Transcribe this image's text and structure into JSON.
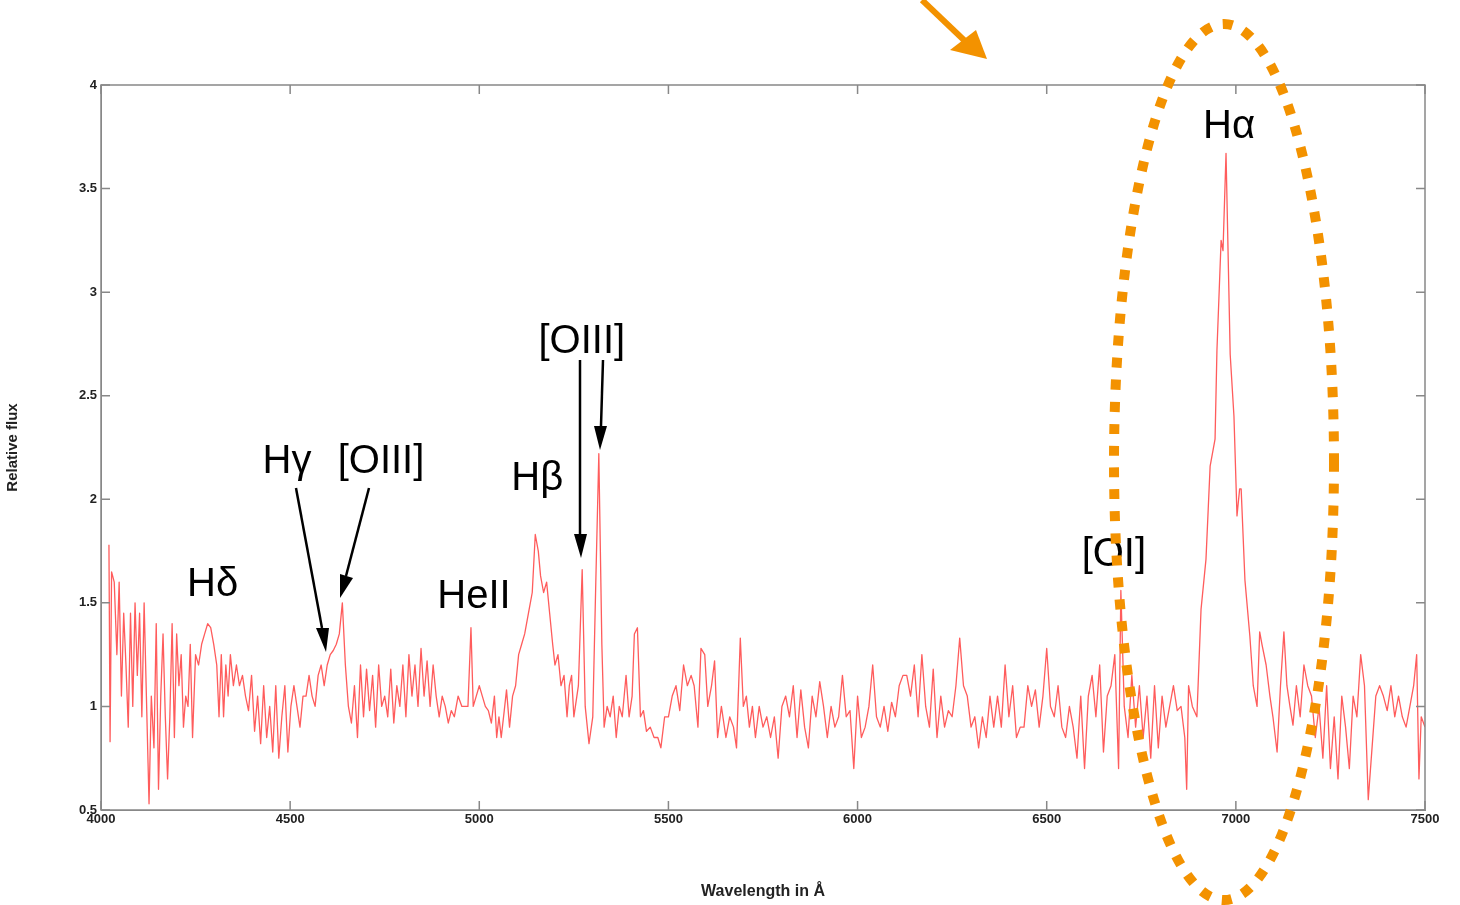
{
  "chart_data": {
    "type": "line",
    "xlabel": "Wavelength in Å",
    "ylabel": "Relative flux",
    "xlim": [
      4000,
      7500
    ],
    "xticks": [
      4000,
      4500,
      5000,
      5500,
      6000,
      6500,
      7000,
      7500
    ],
    "ylim": [
      0.5,
      4
    ],
    "yticks": [
      0.5,
      1,
      1.5,
      2,
      2.5,
      3,
      3.5,
      4
    ],
    "marker": "none",
    "line_style": "solid",
    "annotations": [
      {
        "text": "Hδ",
        "x": 4282,
        "y": 1.4
      },
      "Hγ",
      "[OIII]",
      {
        "text": "HeII",
        "x": 4978,
        "y": 1.38
      },
      {
        "text": "Hβ",
        "x": 5148,
        "y": 1.83
      },
      {
        "text": "[OIII]",
        "x": 5316,
        "y": 2.22
      },
      {
        "text": "[OI]",
        "x": 6696,
        "y": 1.56
      },
      {
        "text": "Hα",
        "x": 6974,
        "y": 3.67
      }
    ],
    "series": [
      {
        "color": "#ff5c5c",
        "x": [
          4021,
          4024,
          4028,
          4035,
          4042,
          4048,
          4054,
          4060,
          4066,
          4072,
          4078,
          4084,
          4090,
          4096,
          4102,
          4108,
          4114,
          4120,
          4127,
          4133,
          4140,
          4146,
          4152,
          4158,
          4164,
          4170,
          4176,
          4182,
          4188,
          4194,
          4200,
          4206,
          4212,
          4218,
          4224,
          4230,
          4236,
          4242,
          4250,
          4258,
          4266,
          4274,
          4282,
          4290,
          4298,
          4306,
          4312,
          4318,
          4324,
          4330,
          4336,
          4342,
          4350,
          4358,
          4366,
          4374,
          4382,
          4390,
          4398,
          4406,
          4414,
          4422,
          4430,
          4438,
          4446,
          4454,
          4462,
          4470,
          4478,
          4486,
          4494,
          4502,
          4510,
          4518,
          4526,
          4534,
          4542,
          4550,
          4558,
          4566,
          4574,
          4582,
          4590,
          4598,
          4606,
          4614,
          4622,
          4630,
          4638,
          4646,
          4654,
          4662,
          4670,
          4678,
          4686,
          4694,
          4702,
          4710,
          4718,
          4726,
          4734,
          4742,
          4750,
          4758,
          4766,
          4774,
          4782,
          4790,
          4798,
          4806,
          4814,
          4822,
          4830,
          4838,
          4846,
          4854,
          4862,
          4870,
          4878,
          4886,
          4894,
          4902,
          4910,
          4918,
          4926,
          4934,
          4944,
          4954,
          4962,
          4970,
          4978,
          4984,
          4992,
          5000,
          5008,
          5016,
          5024,
          5032,
          5040,
          5046,
          5052,
          5058,
          5066,
          5072,
          5080,
          5088,
          5096,
          5104,
          5112,
          5120,
          5130,
          5140,
          5148,
          5156,
          5162,
          5170,
          5178,
          5186,
          5194,
          5200,
          5208,
          5216,
          5224,
          5232,
          5238,
          5244,
          5250,
          5262,
          5272,
          5280,
          5290,
          5300,
          5308,
          5316,
          5324,
          5330,
          5338,
          5346,
          5354,
          5362,
          5370,
          5378,
          5388,
          5396,
          5404,
          5410,
          5418,
          5426,
          5434,
          5442,
          5452,
          5462,
          5472,
          5480,
          5490,
          5500,
          5510,
          5520,
          5530,
          5540,
          5550,
          5560,
          5568,
          5578,
          5586,
          5596,
          5604,
          5614,
          5622,
          5630,
          5640,
          5652,
          5662,
          5672,
          5680,
          5690,
          5698,
          5706,
          5714,
          5722,
          5730,
          5740,
          5750,
          5760,
          5770,
          5780,
          5790,
          5800,
          5810,
          5820,
          5830,
          5840,
          5850,
          5860,
          5870,
          5880,
          5890,
          5900,
          5910,
          5920,
          5930,
          5940,
          5950,
          5960,
          5970,
          5980,
          5990,
          6000,
          6010,
          6020,
          6030,
          6040,
          6050,
          6060,
          6070,
          6080,
          6090,
          6100,
          6110,
          6120,
          6130,
          6140,
          6150,
          6160,
          6170,
          6180,
          6190,
          6200,
          6210,
          6220,
          6230,
          6240,
          6250,
          6260,
          6270,
          6280,
          6290,
          6300,
          6310,
          6320,
          6330,
          6340,
          6350,
          6360,
          6370,
          6380,
          6390,
          6400,
          6410,
          6420,
          6430,
          6440,
          6450,
          6460,
          6470,
          6480,
          6490,
          6500,
          6510,
          6520,
          6530,
          6540,
          6550,
          6560,
          6570,
          6580,
          6590,
          6600,
          6610,
          6620,
          6630,
          6640,
          6650,
          6660,
          6670,
          6680,
          6690,
          6696,
          6705,
          6715,
          6725,
          6735,
          6745,
          6755,
          6765,
          6775,
          6785,
          6795,
          6805,
          6815,
          6825,
          6835,
          6845,
          6855,
          6865,
          6870,
          6875,
          6885,
          6897,
          6908,
          6921,
          6932,
          6945,
          6950,
          6961,
          6966,
          6974,
          6985,
          6995,
          7003,
          7010,
          7014,
          7024,
          7037,
          7046,
          7056,
          7063,
          7069,
          7080,
          7090,
          7098,
          7109,
          7118,
          7127,
          7135,
          7143,
          7151,
          7160,
          7170,
          7180,
          7190,
          7200,
          7210,
          7220,
          7230,
          7240,
          7250,
          7260,
          7270,
          7280,
          7290,
          7300,
          7310,
          7320,
          7330,
          7340,
          7350,
          7360,
          7370,
          7380,
          7390,
          7400,
          7410,
          7420,
          7430,
          7440,
          7450,
          7460,
          7470,
          7478,
          7484,
          7490,
          7500
        ],
        "values": [
          1.78,
          0.83,
          1.65,
          1.6,
          1.25,
          1.6,
          1.05,
          1.45,
          1.2,
          0.9,
          1.45,
          1.0,
          1.5,
          1.15,
          1.45,
          0.95,
          1.5,
          1.05,
          0.53,
          1.05,
          0.8,
          1.4,
          0.6,
          1.05,
          1.35,
          0.95,
          0.65,
          0.95,
          1.4,
          0.85,
          1.35,
          1.1,
          1.25,
          0.9,
          1.05,
          1.0,
          1.3,
          0.85,
          1.25,
          1.2,
          1.3,
          1.35,
          1.4,
          1.38,
          1.3,
          1.2,
          0.95,
          1.25,
          0.95,
          1.2,
          1.05,
          1.25,
          1.1,
          1.2,
          1.1,
          1.15,
          1.05,
          0.98,
          1.15,
          0.88,
          1.05,
          0.82,
          1.1,
          0.85,
          1.0,
          0.78,
          1.1,
          0.75,
          0.95,
          1.1,
          0.78,
          1.0,
          1.1,
          1.0,
          0.9,
          1.05,
          1.05,
          1.15,
          1.05,
          1.0,
          1.15,
          1.2,
          1.1,
          1.2,
          1.25,
          1.27,
          1.3,
          1.35,
          1.5,
          1.2,
          1.0,
          0.92,
          1.1,
          0.85,
          1.2,
          0.95,
          1.18,
          0.98,
          1.15,
          0.9,
          1.2,
          1.0,
          1.05,
          0.95,
          1.18,
          0.92,
          1.1,
          1.0,
          1.2,
          0.95,
          1.25,
          1.05,
          1.2,
          1.0,
          1.28,
          1.05,
          1.22,
          1.0,
          1.2,
          1.05,
          0.95,
          1.05,
          1.0,
          0.92,
          0.98,
          0.95,
          1.05,
          1.0,
          1.0,
          1.0,
          1.38,
          1.0,
          1.05,
          1.1,
          1.05,
          1.0,
          0.98,
          0.92,
          1.05,
          0.85,
          0.95,
          0.85,
          0.98,
          1.08,
          0.9,
          1.05,
          1.1,
          1.25,
          1.3,
          1.35,
          1.45,
          1.55,
          1.83,
          1.75,
          1.63,
          1.55,
          1.6,
          1.45,
          1.3,
          1.2,
          1.25,
          1.1,
          1.15,
          0.95,
          1.1,
          1.15,
          0.95,
          1.1,
          1.66,
          1.0,
          0.82,
          0.95,
          1.6,
          2.22,
          1.3,
          0.9,
          1.0,
          0.95,
          1.05,
          0.85,
          1.0,
          0.95,
          1.15,
          0.95,
          1.05,
          1.35,
          1.38,
          0.95,
          0.98,
          0.88,
          0.9,
          0.85,
          0.85,
          0.8,
          0.95,
          0.95,
          1.05,
          1.1,
          0.98,
          1.2,
          1.1,
          1.15,
          1.1,
          0.9,
          1.28,
          1.25,
          1.0,
          1.1,
          1.22,
          0.85,
          1.0,
          0.85,
          0.95,
          0.9,
          0.8,
          1.33,
          1.0,
          1.05,
          0.9,
          1.0,
          0.85,
          1.0,
          0.9,
          0.95,
          0.85,
          0.95,
          0.75,
          1.0,
          1.05,
          0.95,
          1.1,
          0.85,
          1.08,
          0.9,
          0.8,
          1.05,
          0.95,
          1.12,
          1.0,
          0.85,
          1.0,
          0.9,
          0.95,
          1.15,
          0.95,
          0.98,
          0.7,
          1.05,
          0.85,
          0.9,
          1.0,
          1.2,
          0.95,
          0.9,
          1.0,
          0.88,
          1.02,
          0.95,
          1.1,
          1.15,
          1.15,
          1.05,
          1.2,
          0.95,
          1.25,
          1.0,
          0.9,
          1.18,
          0.85,
          1.05,
          0.9,
          0.98,
          0.95,
          1.1,
          1.33,
          1.1,
          1.05,
          0.9,
          0.95,
          0.8,
          0.95,
          0.85,
          1.05,
          0.9,
          1.05,
          0.9,
          1.2,
          0.95,
          1.1,
          0.85,
          0.9,
          0.9,
          1.1,
          1.0,
          1.08,
          0.9,
          1.05,
          1.28,
          1.0,
          0.95,
          1.1,
          0.9,
          0.85,
          1.0,
          0.9,
          0.75,
          1.05,
          0.7,
          1.05,
          1.15,
          0.95,
          1.2,
          0.78,
          1.05,
          1.1,
          1.25,
          0.7,
          1.56,
          1.0,
          0.85,
          1.15,
          0.9,
          1.1,
          0.85,
          1.05,
          0.75,
          1.1,
          0.8,
          1.05,
          0.9,
          1.0,
          1.1,
          0.98,
          1.0,
          0.85,
          0.6,
          1.1,
          1.0,
          0.95,
          1.47,
          1.71,
          2.16,
          2.29,
          2.72,
          3.25,
          3.2,
          3.67,
          2.7,
          2.4,
          1.92,
          2.05,
          2.05,
          1.61,
          1.34,
          1.1,
          1.0,
          1.36,
          1.3,
          1.2,
          1.05,
          0.95,
          0.78,
          1.1,
          1.36,
          1.1,
          1.0,
          0.91,
          1.1,
          0.95,
          1.2,
          1.1,
          1.05,
          0.85,
          1.0,
          0.75,
          1.1,
          0.7,
          0.95,
          0.65,
          1.05,
          0.9,
          0.7,
          1.05,
          0.95,
          1.25,
          1.1,
          0.55,
          0.8,
          1.05,
          1.1,
          1.05,
          0.98,
          1.1,
          0.95,
          1.05,
          0.95,
          0.9,
          1.0,
          1.1,
          1.25,
          0.65,
          0.95,
          0.9
        ]
      }
    ]
  }
}
